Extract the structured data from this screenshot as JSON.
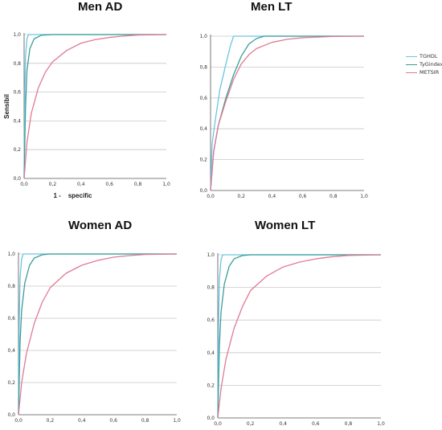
{
  "legend": [
    {
      "name": "TGHDL",
      "color": "#6cc4e4"
    },
    {
      "name": "TyGindex",
      "color": "#3a9e98"
    },
    {
      "name": "METSIR",
      "color": "#e07a93"
    }
  ],
  "chart_data": [
    {
      "type": "line",
      "title": "Men AD",
      "xlabel": "1 -    specific",
      "ylabel": "Sensibil",
      "xlim": [
        0,
        1
      ],
      "ylim": [
        0,
        1
      ],
      "x_ticks": [
        "0,0",
        "0,2",
        "0,4",
        "0,6",
        "0,8",
        "1,0"
      ],
      "y_ticks": [
        "0,0",
        "0,2",
        "0,4",
        "0,6",
        "0,8",
        "1,0"
      ],
      "grid": "horizontal",
      "series": [
        {
          "name": "TGHDL",
          "color": "#6cc4e4",
          "points": [
            [
              0,
              0
            ],
            [
              0.005,
              0.6
            ],
            [
              0.01,
              0.85
            ],
            [
              0.02,
              0.97
            ],
            [
              0.03,
              1.0
            ],
            [
              1,
              1
            ]
          ]
        },
        {
          "name": "TyGindex",
          "color": "#3a9e98",
          "points": [
            [
              0,
              0
            ],
            [
              0.01,
              0.5
            ],
            [
              0.02,
              0.75
            ],
            [
              0.04,
              0.9
            ],
            [
              0.07,
              0.97
            ],
            [
              0.12,
              0.995
            ],
            [
              0.2,
              1.0
            ],
            [
              1,
              1
            ]
          ]
        },
        {
          "name": "METSIR",
          "color": "#e07a93",
          "points": [
            [
              0,
              0
            ],
            [
              0.02,
              0.25
            ],
            [
              0.05,
              0.45
            ],
            [
              0.1,
              0.63
            ],
            [
              0.15,
              0.74
            ],
            [
              0.2,
              0.81
            ],
            [
              0.3,
              0.89
            ],
            [
              0.4,
              0.94
            ],
            [
              0.5,
              0.965
            ],
            [
              0.6,
              0.98
            ],
            [
              0.7,
              0.99
            ],
            [
              0.8,
              0.997
            ],
            [
              1,
              1
            ]
          ]
        }
      ]
    },
    {
      "type": "line",
      "title": "Men LT",
      "xlabel": "",
      "ylabel": "",
      "xlim": [
        0,
        1
      ],
      "ylim": [
        0,
        1
      ],
      "x_ticks": [
        "0,0",
        "0,2",
        "0,4",
        "0,6",
        "0,8",
        "1,0"
      ],
      "y_ticks": [
        "0,0",
        "0,2",
        "0,4",
        "0,6",
        "0,8",
        "1,0"
      ],
      "grid": "horizontal",
      "series": [
        {
          "name": "TGHDL",
          "color": "#6cc4e4",
          "points": [
            [
              0,
              0
            ],
            [
              0.01,
              0.3
            ],
            [
              0.03,
              0.45
            ],
            [
              0.06,
              0.65
            ],
            [
              0.1,
              0.82
            ],
            [
              0.13,
              0.94
            ],
            [
              0.15,
              1.0
            ],
            [
              1,
              1
            ]
          ]
        },
        {
          "name": "TyGindex",
          "color": "#3a9e98",
          "points": [
            [
              0,
              0
            ],
            [
              0.02,
              0.25
            ],
            [
              0.05,
              0.42
            ],
            [
              0.1,
              0.6
            ],
            [
              0.15,
              0.75
            ],
            [
              0.2,
              0.87
            ],
            [
              0.25,
              0.95
            ],
            [
              0.3,
              0.985
            ],
            [
              0.35,
              1.0
            ],
            [
              1,
              1
            ]
          ]
        },
        {
          "name": "METSIR",
          "color": "#e07a93",
          "points": [
            [
              0,
              0
            ],
            [
              0.02,
              0.25
            ],
            [
              0.05,
              0.42
            ],
            [
              0.1,
              0.58
            ],
            [
              0.15,
              0.72
            ],
            [
              0.2,
              0.82
            ],
            [
              0.25,
              0.88
            ],
            [
              0.3,
              0.92
            ],
            [
              0.4,
              0.96
            ],
            [
              0.5,
              0.98
            ],
            [
              0.6,
              0.99
            ],
            [
              0.8,
              0.998
            ],
            [
              1,
              1
            ]
          ]
        }
      ]
    },
    {
      "type": "line",
      "title": "Women AD",
      "xlabel": "",
      "ylabel": "",
      "xlim": [
        0,
        1
      ],
      "ylim": [
        0,
        1
      ],
      "x_ticks": [
        "0,0",
        "0,2",
        "0,4",
        "0,6",
        "0,8",
        "1,0"
      ],
      "y_ticks": [
        "0,0",
        "0,2",
        "0,4",
        "0,6",
        "0,8",
        "1,0"
      ],
      "grid": "horizontal",
      "series": [
        {
          "name": "TGHDL",
          "color": "#6cc4e4",
          "points": [
            [
              0,
              0
            ],
            [
              0.005,
              0.6
            ],
            [
              0.01,
              0.85
            ],
            [
              0.02,
              0.97
            ],
            [
              0.03,
              1.0
            ],
            [
              1,
              1
            ]
          ]
        },
        {
          "name": "TyGindex",
          "color": "#3a9e98",
          "points": [
            [
              0,
              0
            ],
            [
              0.01,
              0.45
            ],
            [
              0.02,
              0.65
            ],
            [
              0.04,
              0.82
            ],
            [
              0.07,
              0.93
            ],
            [
              0.1,
              0.975
            ],
            [
              0.15,
              0.995
            ],
            [
              0.2,
              1.0
            ],
            [
              1,
              1
            ]
          ]
        },
        {
          "name": "METSIR",
          "color": "#e07a93",
          "points": [
            [
              0,
              0
            ],
            [
              0.02,
              0.2
            ],
            [
              0.05,
              0.38
            ],
            [
              0.1,
              0.57
            ],
            [
              0.15,
              0.7
            ],
            [
              0.2,
              0.79
            ],
            [
              0.3,
              0.88
            ],
            [
              0.4,
              0.93
            ],
            [
              0.5,
              0.96
            ],
            [
              0.6,
              0.98
            ],
            [
              0.7,
              0.99
            ],
            [
              0.8,
              0.997
            ],
            [
              1,
              1
            ]
          ]
        }
      ]
    },
    {
      "type": "line",
      "title": "Women LT",
      "xlabel": "",
      "ylabel": "",
      "xlim": [
        0,
        1
      ],
      "ylim": [
        0,
        1
      ],
      "x_ticks": [
        "0,0",
        "0,2",
        "0,4",
        "0,6",
        "0,8",
        "1,0"
      ],
      "y_ticks": [
        "0,0",
        "0,2",
        "0,4",
        "0,6",
        "0,8",
        "1,0"
      ],
      "grid": "horizontal",
      "series": [
        {
          "name": "TGHDL",
          "color": "#6cc4e4",
          "points": [
            [
              0,
              0
            ],
            [
              0.005,
              0.6
            ],
            [
              0.01,
              0.85
            ],
            [
              0.02,
              0.97
            ],
            [
              0.03,
              1.0
            ],
            [
              1,
              1
            ]
          ]
        },
        {
          "name": "TyGindex",
          "color": "#3a9e98",
          "points": [
            [
              0,
              0
            ],
            [
              0.01,
              0.45
            ],
            [
              0.02,
              0.65
            ],
            [
              0.04,
              0.82
            ],
            [
              0.07,
              0.93
            ],
            [
              0.1,
              0.975
            ],
            [
              0.15,
              0.995
            ],
            [
              0.2,
              1.0
            ],
            [
              1,
              1
            ]
          ]
        },
        {
          "name": "METSIR",
          "color": "#e07a93",
          "points": [
            [
              0,
              0
            ],
            [
              0.02,
              0.18
            ],
            [
              0.05,
              0.36
            ],
            [
              0.1,
              0.55
            ],
            [
              0.15,
              0.68
            ],
            [
              0.2,
              0.78
            ],
            [
              0.3,
              0.87
            ],
            [
              0.4,
              0.925
            ],
            [
              0.5,
              0.955
            ],
            [
              0.6,
              0.975
            ],
            [
              0.7,
              0.988
            ],
            [
              0.8,
              0.996
            ],
            [
              1,
              1
            ]
          ]
        }
      ]
    }
  ]
}
